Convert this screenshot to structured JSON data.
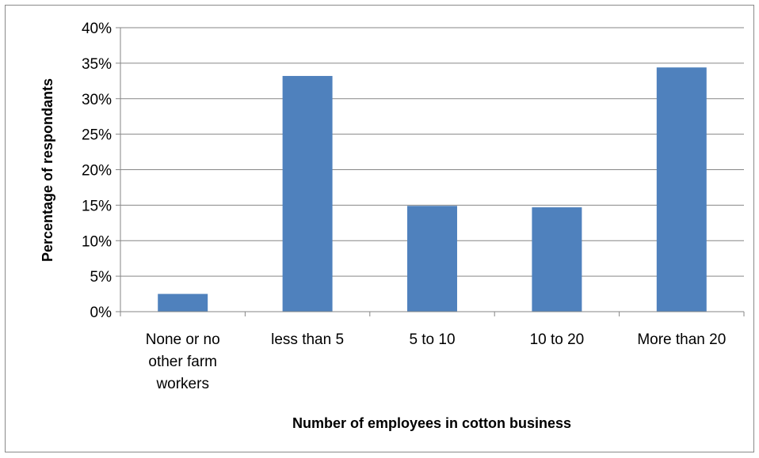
{
  "chart_data": {
    "type": "bar",
    "categories": [
      [
        "None or no",
        "other farm",
        "workers"
      ],
      [
        "less than 5"
      ],
      [
        "5 to 10"
      ],
      [
        "10 to 20"
      ],
      [
        "More than 20"
      ]
    ],
    "values": [
      2.5,
      33.2,
      14.9,
      14.7,
      34.4
    ],
    "unit": "%",
    "title": "",
    "xlabel": "Number of employees in cotton business",
    "ylabel": "Percentage of respondants",
    "ylim": [
      0,
      40
    ],
    "ytick_step": 5,
    "yticks": [
      "0%",
      "5%",
      "10%",
      "15%",
      "20%",
      "25%",
      "30%",
      "35%",
      "40%"
    ],
    "grid": true,
    "legend": "none",
    "bar_color": "#4F81BD",
    "grid_color": "#868686",
    "axis_color": "#868686"
  }
}
